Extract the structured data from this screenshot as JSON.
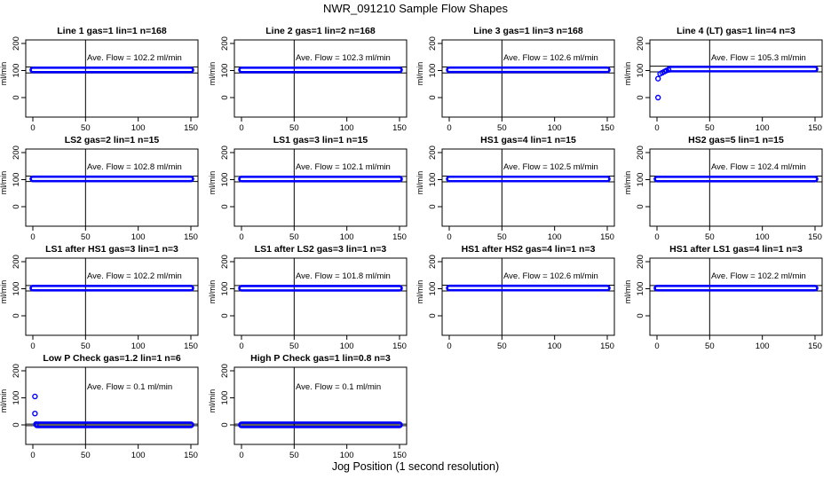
{
  "figure": {
    "title": "NWR_091210  Sample Flow Shapes",
    "xlabel": "Jog Position (1 second resolution)"
  },
  "colors": {
    "points": "#0000ff",
    "axis": "#000000"
  },
  "chart_data": [
    {
      "type": "scatter",
      "title": "Line 1 gas=1 lin=1 n=168",
      "ylabel": "ml/min",
      "annotation": "Ave. Flow =  102.2  ml/min",
      "xlim": [
        0,
        150
      ],
      "ylim": [
        0,
        200
      ],
      "xticks": [
        0,
        50,
        100,
        150
      ],
      "yticks": [
        0,
        100,
        200
      ],
      "vline": 50,
      "hlines": [
        91,
        113
      ],
      "x_range": [
        0,
        150
      ],
      "flow": 102.2,
      "points": []
    },
    {
      "type": "scatter",
      "title": "Line 2 gas=1 lin=2 n=168",
      "ylabel": "ml/min",
      "annotation": "Ave. Flow =  102.3  ml/min",
      "xlim": [
        0,
        150
      ],
      "ylim": [
        0,
        200
      ],
      "xticks": [
        0,
        50,
        100,
        150
      ],
      "yticks": [
        0,
        100,
        200
      ],
      "vline": 50,
      "hlines": [
        91,
        113
      ],
      "x_range": [
        0,
        150
      ],
      "flow": 102.3,
      "points": []
    },
    {
      "type": "scatter",
      "title": "Line 3 gas=1 lin=3 n=168",
      "ylabel": "ml/min",
      "annotation": "Ave. Flow =  102.6  ml/min",
      "xlim": [
        0,
        150
      ],
      "ylim": [
        0,
        200
      ],
      "xticks": [
        0,
        50,
        100,
        150
      ],
      "yticks": [
        0,
        100,
        200
      ],
      "vline": 50,
      "hlines": [
        91,
        113
      ],
      "x_range": [
        0,
        150
      ],
      "flow": 102.6,
      "points": []
    },
    {
      "type": "scatter",
      "title": "Line 4 (LT) gas=1 lin=4 n=3",
      "ylabel": "ml/min",
      "annotation": "Ave. Flow =  105.3  ml/min",
      "xlim": [
        0,
        150
      ],
      "ylim": [
        0,
        200
      ],
      "xticks": [
        0,
        50,
        100,
        150
      ],
      "yticks": [
        0,
        100,
        200
      ],
      "vline": 50,
      "hlines": [
        95,
        116
      ],
      "x_range": [
        12,
        150
      ],
      "flow": 105.3,
      "points": [
        [
          1,
          0
        ],
        [
          1,
          70
        ],
        [
          3,
          88
        ],
        [
          5,
          92
        ],
        [
          7,
          96
        ],
        [
          9,
          100
        ],
        [
          11,
          102
        ]
      ]
    },
    {
      "type": "scatter",
      "title": "LS2 gas=2 lin=1 n=15",
      "ylabel": "ml/min",
      "annotation": "Ave. Flow =  102.8  ml/min",
      "xlim": [
        0,
        150
      ],
      "ylim": [
        0,
        200
      ],
      "xticks": [
        0,
        50,
        100,
        150
      ],
      "yticks": [
        0,
        100,
        200
      ],
      "vline": 50,
      "hlines": [
        93,
        113
      ],
      "x_range": [
        0,
        150
      ],
      "flow": 102.8,
      "points": []
    },
    {
      "type": "scatter",
      "title": "LS1 gas=3 lin=1 n=15",
      "ylabel": "ml/min",
      "annotation": "Ave. Flow =  102.1  ml/min",
      "xlim": [
        0,
        150
      ],
      "ylim": [
        0,
        200
      ],
      "xticks": [
        0,
        50,
        100,
        150
      ],
      "yticks": [
        0,
        100,
        200
      ],
      "vline": 50,
      "hlines": [
        92,
        112
      ],
      "x_range": [
        0,
        150
      ],
      "flow": 102.1,
      "points": []
    },
    {
      "type": "scatter",
      "title": "HS1 gas=4 lin=1 n=15",
      "ylabel": "ml/min",
      "annotation": "Ave. Flow =  102.5  ml/min",
      "xlim": [
        0,
        150
      ],
      "ylim": [
        0,
        200
      ],
      "xticks": [
        0,
        50,
        100,
        150
      ],
      "yticks": [
        0,
        100,
        200
      ],
      "vline": 50,
      "hlines": [
        92,
        113
      ],
      "x_range": [
        0,
        150
      ],
      "flow": 102.5,
      "points": []
    },
    {
      "type": "scatter",
      "title": "HS2 gas=5 lin=1 n=15",
      "ylabel": "ml/min",
      "annotation": "Ave. Flow =  102.4  ml/min",
      "xlim": [
        0,
        150
      ],
      "ylim": [
        0,
        200
      ],
      "xticks": [
        0,
        50,
        100,
        150
      ],
      "yticks": [
        0,
        100,
        200
      ],
      "vline": 50,
      "hlines": [
        92,
        113
      ],
      "x_range": [
        0,
        150
      ],
      "flow": 102.4,
      "points": []
    },
    {
      "type": "scatter",
      "title": "LS1 after HS1 gas=3 lin=1 n=3",
      "ylabel": "ml/min",
      "annotation": "Ave. Flow =  102.2  ml/min",
      "xlim": [
        0,
        150
      ],
      "ylim": [
        0,
        200
      ],
      "xticks": [
        0,
        50,
        100,
        150
      ],
      "yticks": [
        0,
        100,
        200
      ],
      "vline": 50,
      "hlines": [
        92,
        112
      ],
      "x_range": [
        0,
        150
      ],
      "flow": 102.2,
      "points": []
    },
    {
      "type": "scatter",
      "title": "LS1 after LS2 gas=3 lin=1 n=3",
      "ylabel": "ml/min",
      "annotation": "Ave. Flow =  101.8  ml/min",
      "xlim": [
        0,
        150
      ],
      "ylim": [
        0,
        200
      ],
      "xticks": [
        0,
        50,
        100,
        150
      ],
      "yticks": [
        0,
        100,
        200
      ],
      "vline": 50,
      "hlines": [
        92,
        112
      ],
      "x_range": [
        0,
        150
      ],
      "flow": 101.8,
      "points": []
    },
    {
      "type": "scatter",
      "title": "HS1 after HS2 gas=4 lin=1 n=3",
      "ylabel": "ml/min",
      "annotation": "Ave. Flow =  102.6  ml/min",
      "xlim": [
        0,
        150
      ],
      "ylim": [
        0,
        200
      ],
      "xticks": [
        0,
        50,
        100,
        150
      ],
      "yticks": [
        0,
        100,
        200
      ],
      "vline": 50,
      "hlines": [
        92,
        113
      ],
      "x_range": [
        0,
        150
      ],
      "flow": 102.6,
      "points": []
    },
    {
      "type": "scatter",
      "title": "HS1 after LS1 gas=4 lin=1 n=3",
      "ylabel": "ml/min",
      "annotation": "Ave. Flow =  102.2  ml/min",
      "xlim": [
        0,
        150
      ],
      "ylim": [
        0,
        200
      ],
      "xticks": [
        0,
        50,
        100,
        150
      ],
      "yticks": [
        0,
        100,
        200
      ],
      "vline": 50,
      "hlines": [
        92,
        112
      ],
      "x_range": [
        0,
        150
      ],
      "flow": 102.2,
      "points": []
    },
    {
      "type": "scatter",
      "title": "Low P Check gas=1.2 lin=1 n=6",
      "ylabel": "ml/min",
      "annotation": "Ave. Flow =  0.1  ml/min",
      "xlim": [
        0,
        150
      ],
      "ylim": [
        0,
        200
      ],
      "xticks": [
        0,
        50,
        100,
        150
      ],
      "yticks": [
        0,
        100,
        200
      ],
      "vline": 50,
      "hlines": [
        -3,
        3
      ],
      "x_range": [
        4,
        150
      ],
      "flow": 0.1,
      "points": [
        [
          2,
          105
        ],
        [
          2,
          42
        ],
        [
          3,
          3
        ]
      ]
    },
    {
      "type": "scatter",
      "title": "High P Check gas=1 lin=0.8 n=3",
      "ylabel": "ml/min",
      "annotation": "Ave. Flow =  0.1  ml/min",
      "xlim": [
        0,
        150
      ],
      "ylim": [
        0,
        200
      ],
      "xticks": [
        0,
        50,
        100,
        150
      ],
      "yticks": [
        0,
        100,
        200
      ],
      "vline": 50,
      "hlines": [
        -3,
        3
      ],
      "x_range": [
        0,
        150
      ],
      "flow": 0.1,
      "points": []
    }
  ]
}
